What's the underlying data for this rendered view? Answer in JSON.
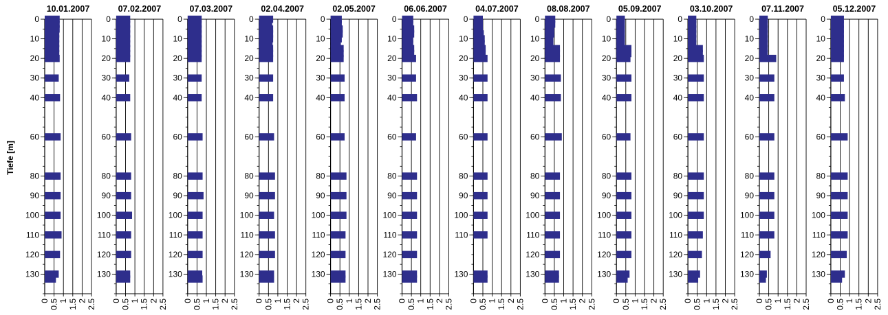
{
  "chart_data": {
    "type": "bar",
    "orientation": "horizontal",
    "ylabel": "Tiefe [m]",
    "y_ticks": [
      0,
      10,
      20,
      30,
      40,
      60,
      80,
      90,
      100,
      110,
      120,
      130
    ],
    "x_ticks": [
      "0",
      "0.5",
      "1",
      "1.5",
      "2",
      "2.5"
    ],
    "xlim": [
      0,
      2.5
    ],
    "ylim": [
      0,
      140
    ],
    "y_reversed": true,
    "grid": "vertical lines at x tick positions",
    "bar_color": "#2e2e8c",
    "depths": [
      0,
      2.5,
      5,
      7.5,
      10,
      12.5,
      15,
      17.5,
      20,
      30,
      40,
      60,
      80,
      90,
      100,
      110,
      120,
      130,
      132.5
    ],
    "panels": [
      {
        "title": "10.01.2007",
        "values": [
          0.8,
          0.8,
          0.8,
          0.78,
          0.78,
          0.78,
          0.78,
          0.78,
          0.8,
          0.75,
          0.82,
          0.85,
          0.85,
          0.85,
          0.85,
          0.9,
          0.82,
          0.75,
          0.6
        ]
      },
      {
        "title": "07.02.2007",
        "values": [
          0.75,
          0.75,
          0.75,
          0.75,
          0.75,
          0.75,
          0.75,
          0.75,
          0.75,
          0.7,
          0.75,
          0.8,
          0.8,
          0.8,
          0.85,
          0.8,
          0.8,
          0.75,
          0.75
        ]
      },
      {
        "title": "07.03.2007",
        "values": [
          0.75,
          0.75,
          0.75,
          0.75,
          0.75,
          0.75,
          0.75,
          0.75,
          0.75,
          0.75,
          0.75,
          0.8,
          0.8,
          0.85,
          0.8,
          0.8,
          0.8,
          0.78,
          0.8
        ]
      },
      {
        "title": "02.04.2007",
        "values": [
          0.75,
          0.7,
          0.75,
          0.75,
          0.75,
          0.72,
          0.75,
          0.75,
          0.75,
          0.75,
          0.75,
          0.8,
          0.85,
          0.85,
          0.8,
          0.85,
          0.85,
          0.8,
          0.8
        ]
      },
      {
        "title": "02.05.2007",
        "values": [
          0.6,
          0.6,
          0.65,
          0.65,
          0.6,
          0.55,
          0.7,
          0.7,
          0.7,
          0.75,
          0.75,
          0.75,
          0.85,
          0.85,
          0.85,
          0.8,
          0.8,
          0.8,
          0.8
        ]
      },
      {
        "title": "06.06.2007",
        "values": [
          0.6,
          0.6,
          0.65,
          0.65,
          0.6,
          0.6,
          0.65,
          0.65,
          0.75,
          0.75,
          0.8,
          0.75,
          0.8,
          0.8,
          0.8,
          0.8,
          0.8,
          0.8,
          0.8
        ]
      },
      {
        "title": "04.07.2007",
        "values": [
          0.5,
          0.5,
          0.5,
          0.55,
          0.6,
          0.6,
          0.65,
          0.65,
          0.75,
          0.75,
          0.75,
          0.75,
          0.75,
          0.75,
          0.75,
          0.75,
          null,
          0.75,
          0.75
        ]
      },
      {
        "title": "08.08.2007",
        "values": [
          0.55,
          0.55,
          0.5,
          0.5,
          0.45,
          0.45,
          0.8,
          0.8,
          0.8,
          0.85,
          0.85,
          0.9,
          0.8,
          0.8,
          0.8,
          0.8,
          0.8,
          0.75,
          0.75
        ]
      },
      {
        "title": "05.09.2007",
        "values": [
          0.45,
          0.45,
          0.45,
          0.45,
          0.45,
          0.45,
          0.8,
          0.8,
          0.75,
          0.8,
          0.8,
          0.75,
          0.8,
          0.8,
          0.8,
          0.8,
          0.8,
          0.7,
          0.6
        ]
      },
      {
        "title": "03.10.2007",
        "values": [
          0.45,
          0.45,
          0.45,
          0.45,
          0.45,
          0.45,
          0.8,
          0.8,
          0.85,
          0.85,
          0.85,
          0.85,
          0.85,
          0.85,
          0.85,
          0.8,
          0.75,
          0.65,
          0.55
        ]
      },
      {
        "title": "07.11.2007",
        "values": [
          0.45,
          0.45,
          0.45,
          0.45,
          0.45,
          0.45,
          0.45,
          0.45,
          0.9,
          0.8,
          0.8,
          0.8,
          0.8,
          0.8,
          0.8,
          0.8,
          0.6,
          0.4,
          0.35
        ]
      },
      {
        "title": "05.12.2007",
        "values": [
          0.7,
          0.7,
          0.7,
          0.7,
          0.7,
          0.7,
          0.7,
          0.7,
          0.7,
          0.7,
          0.75,
          0.9,
          0.9,
          0.9,
          0.9,
          0.9,
          0.85,
          0.75,
          0.6
        ]
      }
    ]
  }
}
